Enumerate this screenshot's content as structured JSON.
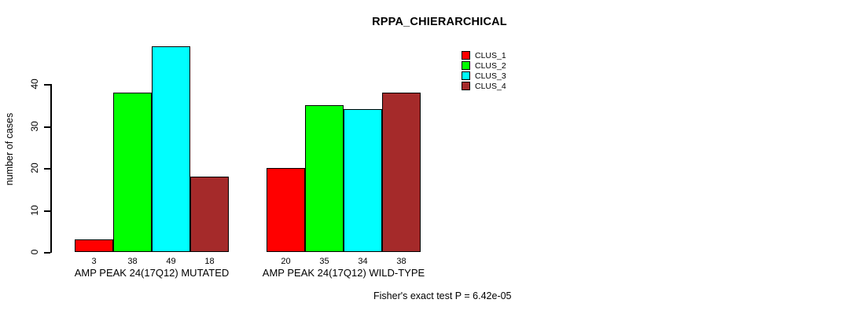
{
  "chart_data": {
    "type": "bar",
    "title": "RPPA_CHIERARCHICAL",
    "ylabel": "number of cases",
    "xlabel": "",
    "annotation": "Fisher's exact test P = 6.42e-05",
    "yticks": [
      0,
      10,
      20,
      30,
      40
    ],
    "ylim": [
      0,
      49
    ],
    "grid": false,
    "legend_position": "top-right",
    "bar_border_color": "#000000",
    "categories": [
      "AMP PEAK 24(17Q12) MUTATED",
      "AMP PEAK 24(17Q12) WILD-TYPE"
    ],
    "series": [
      {
        "name": "CLUS_1",
        "color": "#ff0000",
        "values": [
          3,
          20
        ]
      },
      {
        "name": "CLUS_2",
        "color": "#00ff00",
        "values": [
          38,
          35
        ]
      },
      {
        "name": "CLUS_3",
        "color": "#00ffff",
        "values": [
          49,
          34
        ]
      },
      {
        "name": "CLUS_4",
        "color": "#a52a2a",
        "values": [
          18,
          38
        ]
      }
    ]
  }
}
